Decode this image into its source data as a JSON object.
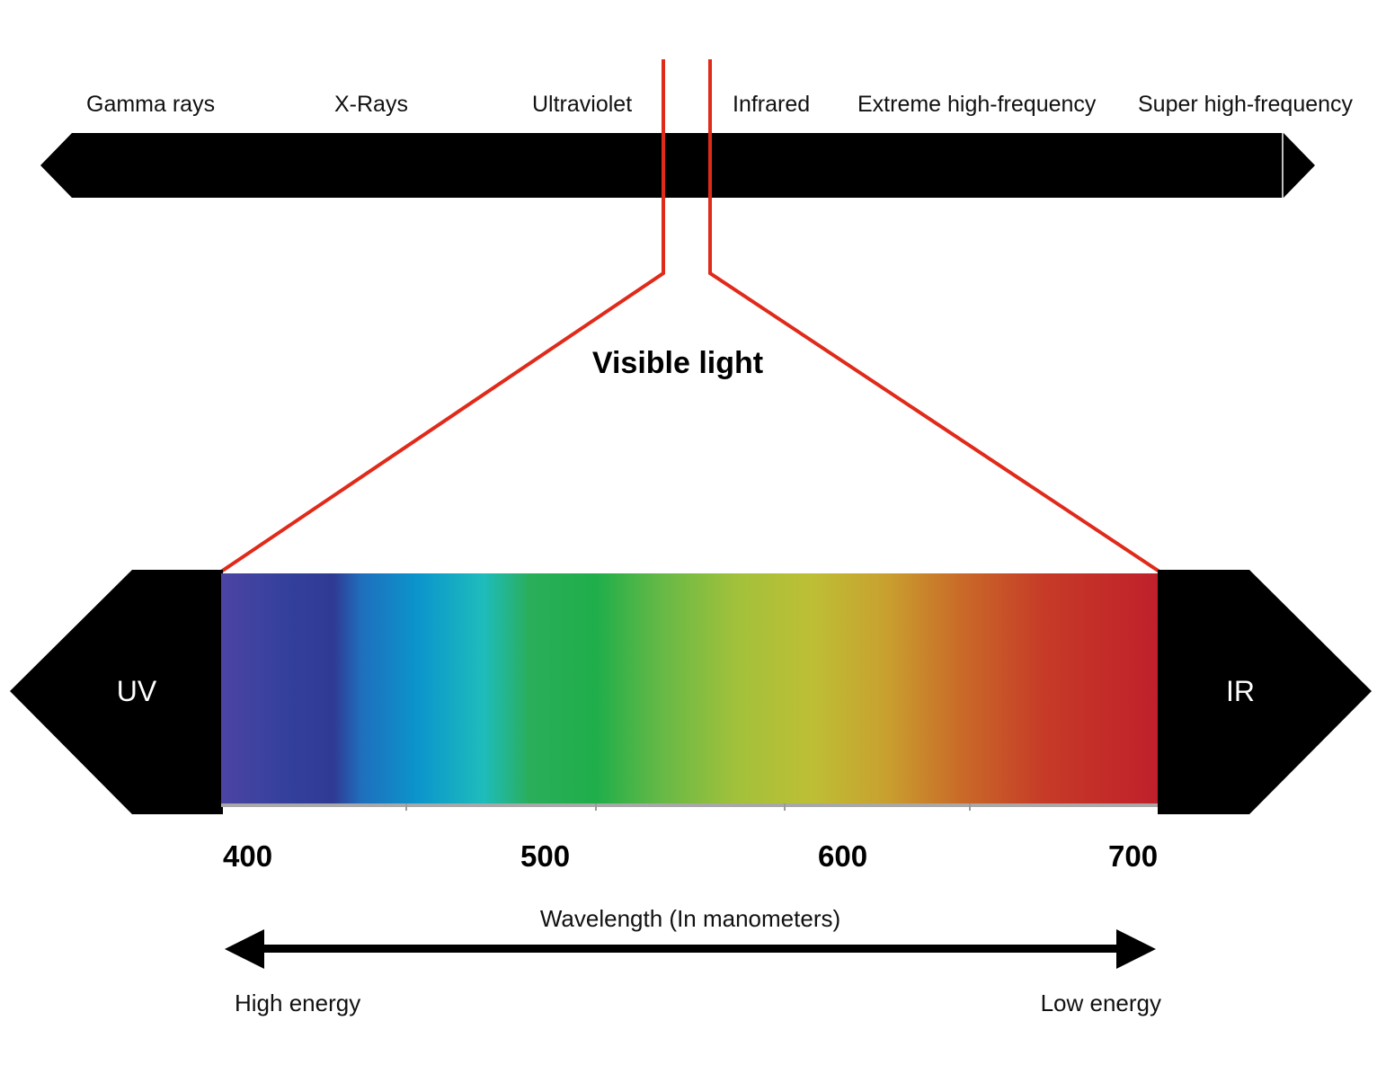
{
  "spectrum": {
    "bands": [
      "Gamma rays",
      "X-Rays",
      "Ultraviolet",
      "Infrared",
      "Extreme high-frequency",
      "Super high-frequency"
    ]
  },
  "visible": {
    "title": "Visible light",
    "left_label": "UV",
    "right_label": "IR",
    "ticks": [
      "400",
      "500",
      "600",
      "700"
    ]
  },
  "axis": {
    "title": "Wavelength (In manometers)",
    "left_label": "High energy",
    "right_label": "Low energy"
  },
  "colors": {
    "highlight_line": "#e02a1a",
    "arrow_fill": "#000000",
    "spectrum_stops": [
      "#4c44a4",
      "#2f3a94",
      "#1f6fbd",
      "#0b95cc",
      "#1ebcbc",
      "#28b04e",
      "#1fae4a",
      "#72bc44",
      "#a9c13a",
      "#bdbf35",
      "#c9a02f",
      "#c96a28",
      "#c63a27",
      "#c0202b"
    ]
  }
}
